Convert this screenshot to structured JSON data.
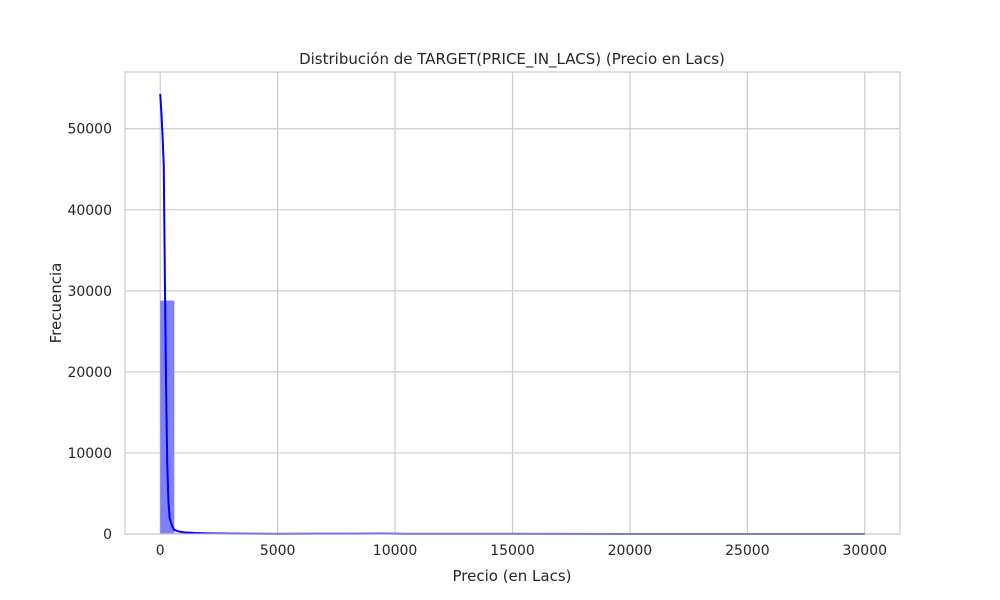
{
  "chart_data": {
    "type": "bar",
    "title": "Distribución de TARGET(PRICE_IN_LACS) (Precio en Lacs)",
    "xlabel": "Precio (en Lacs)",
    "ylabel": "Frecuencia",
    "xlim": [
      -1500,
      31500
    ],
    "ylim": [
      0,
      57000
    ],
    "xticks": [
      0,
      5000,
      10000,
      15000,
      20000,
      25000,
      30000
    ],
    "yticks": [
      0,
      10000,
      20000,
      30000,
      40000,
      50000
    ],
    "grid": true,
    "bar_color": "#8080ff",
    "line_color": "#0000ff",
    "histogram": {
      "bin_width": 600,
      "bins": [
        {
          "x0": 0,
          "x1": 600,
          "count": 28800
        },
        {
          "x0": 600,
          "x1": 1200,
          "count": 80
        },
        {
          "x0": 1200,
          "x1": 1800,
          "count": 40
        },
        {
          "x0": 1800,
          "x1": 2400,
          "count": 25
        },
        {
          "x0": 2400,
          "x1": 3000,
          "count": 15
        },
        {
          "x0": 3000,
          "x1": 3600,
          "count": 10
        },
        {
          "x0": 6000,
          "x1": 6600,
          "count": 12
        },
        {
          "x0": 9000,
          "x1": 9600,
          "count": 15
        },
        {
          "x0": 9600,
          "x1": 10200,
          "count": 10
        },
        {
          "x0": 29400,
          "x1": 30000,
          "count": 5
        }
      ]
    },
    "kde": {
      "x": [
        0,
        50,
        100,
        150,
        200,
        250,
        300,
        350,
        400,
        500,
        600,
        800,
        1000,
        1500,
        2000,
        3000,
        5000,
        6500,
        8000,
        9500,
        10500,
        15000,
        20000,
        25000,
        30000
      ],
      "y": [
        54300,
        52000,
        49000,
        45500,
        31000,
        18000,
        8500,
        4000,
        2000,
        1000,
        500,
        300,
        200,
        120,
        80,
        40,
        20,
        30,
        35,
        40,
        20,
        10,
        8,
        5,
        3
      ]
    }
  }
}
